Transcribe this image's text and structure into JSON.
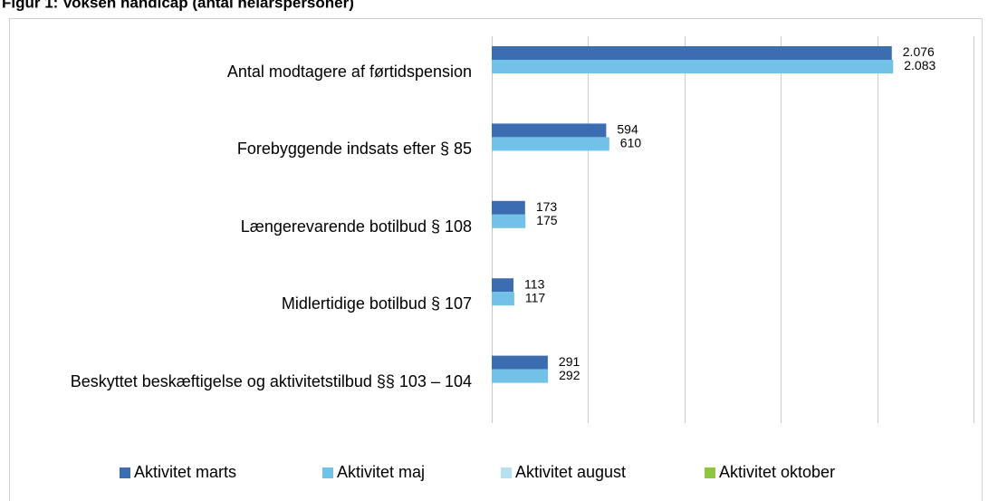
{
  "chart_data": {
    "type": "hbar",
    "title": "Figur 1: Voksen handicap (antal helårspersoner)",
    "categories": [
      "Antal modtagere af førtidspension",
      "Forebyggende indsats efter § 85",
      "Længerevarende botilbud § 108",
      "Midlertidige botilbud § 107",
      "Beskyttet beskæftigelse og aktivitetstilbud §§ 103 – 104"
    ],
    "series": [
      {
        "name": "Aktivitet marts",
        "color": "#3c6db0",
        "values": [
          2076,
          594,
          173,
          113,
          291
        ],
        "value_labels": [
          "2.076",
          "594",
          "173",
          "113",
          "291"
        ]
      },
      {
        "name": "Aktivitet maj",
        "color": "#72c1e6",
        "values": [
          2083,
          610,
          175,
          117,
          292
        ],
        "value_labels": [
          "2.083",
          "610",
          "175",
          "117",
          "292"
        ]
      },
      {
        "name": "Aktivitet august",
        "color": "#b7e0f1",
        "values": [
          null,
          null,
          null,
          null,
          null
        ]
      },
      {
        "name": "Aktivitet oktober",
        "color": "#8dc63f",
        "values": [
          null,
          null,
          null,
          null,
          null
        ]
      }
    ],
    "xlim": [
      0,
      2500
    ],
    "xticks": [
      0,
      500,
      1000,
      1500,
      2000,
      2500
    ],
    "grid": true,
    "legend": "bottom"
  }
}
